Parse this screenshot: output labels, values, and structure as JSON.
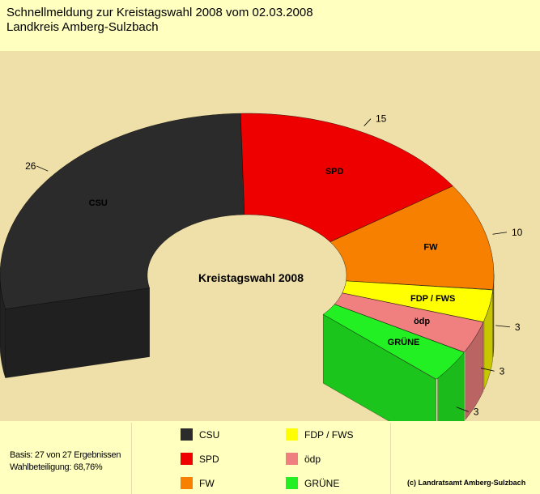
{
  "header": {
    "line1": "Schnellmeldung zur Kreistagswahl 2008 vom 02.03.2008",
    "line2": "Landkreis Amberg-Sulzbach"
  },
  "chart_data": {
    "type": "pie",
    "style": "3d half-donut (seat distribution)",
    "title": "Kreistagswahl 2008",
    "categories": [
      "CSU",
      "SPD",
      "FW",
      "FDP / FWS",
      "ödp",
      "GRÜNE"
    ],
    "inner_labels": [
      "CSU",
      "SPD",
      "FW",
      "FDP / FWS",
      "ödp",
      "GRÜNE"
    ],
    "values": [
      26,
      15,
      10,
      3,
      3,
      3
    ],
    "colors": [
      "#2b2b2b",
      "#ee0000",
      "#f88000",
      "#ffff00",
      "#f08080",
      "#22f022"
    ],
    "legend": "bottom"
  },
  "footer": {
    "basis": "Basis: 27 von 27 Ergebnissen",
    "turnout": "Wahlbeteiligung: 68,76%",
    "copyright": "(c) Landratsamt Amberg-Sulzbach"
  }
}
